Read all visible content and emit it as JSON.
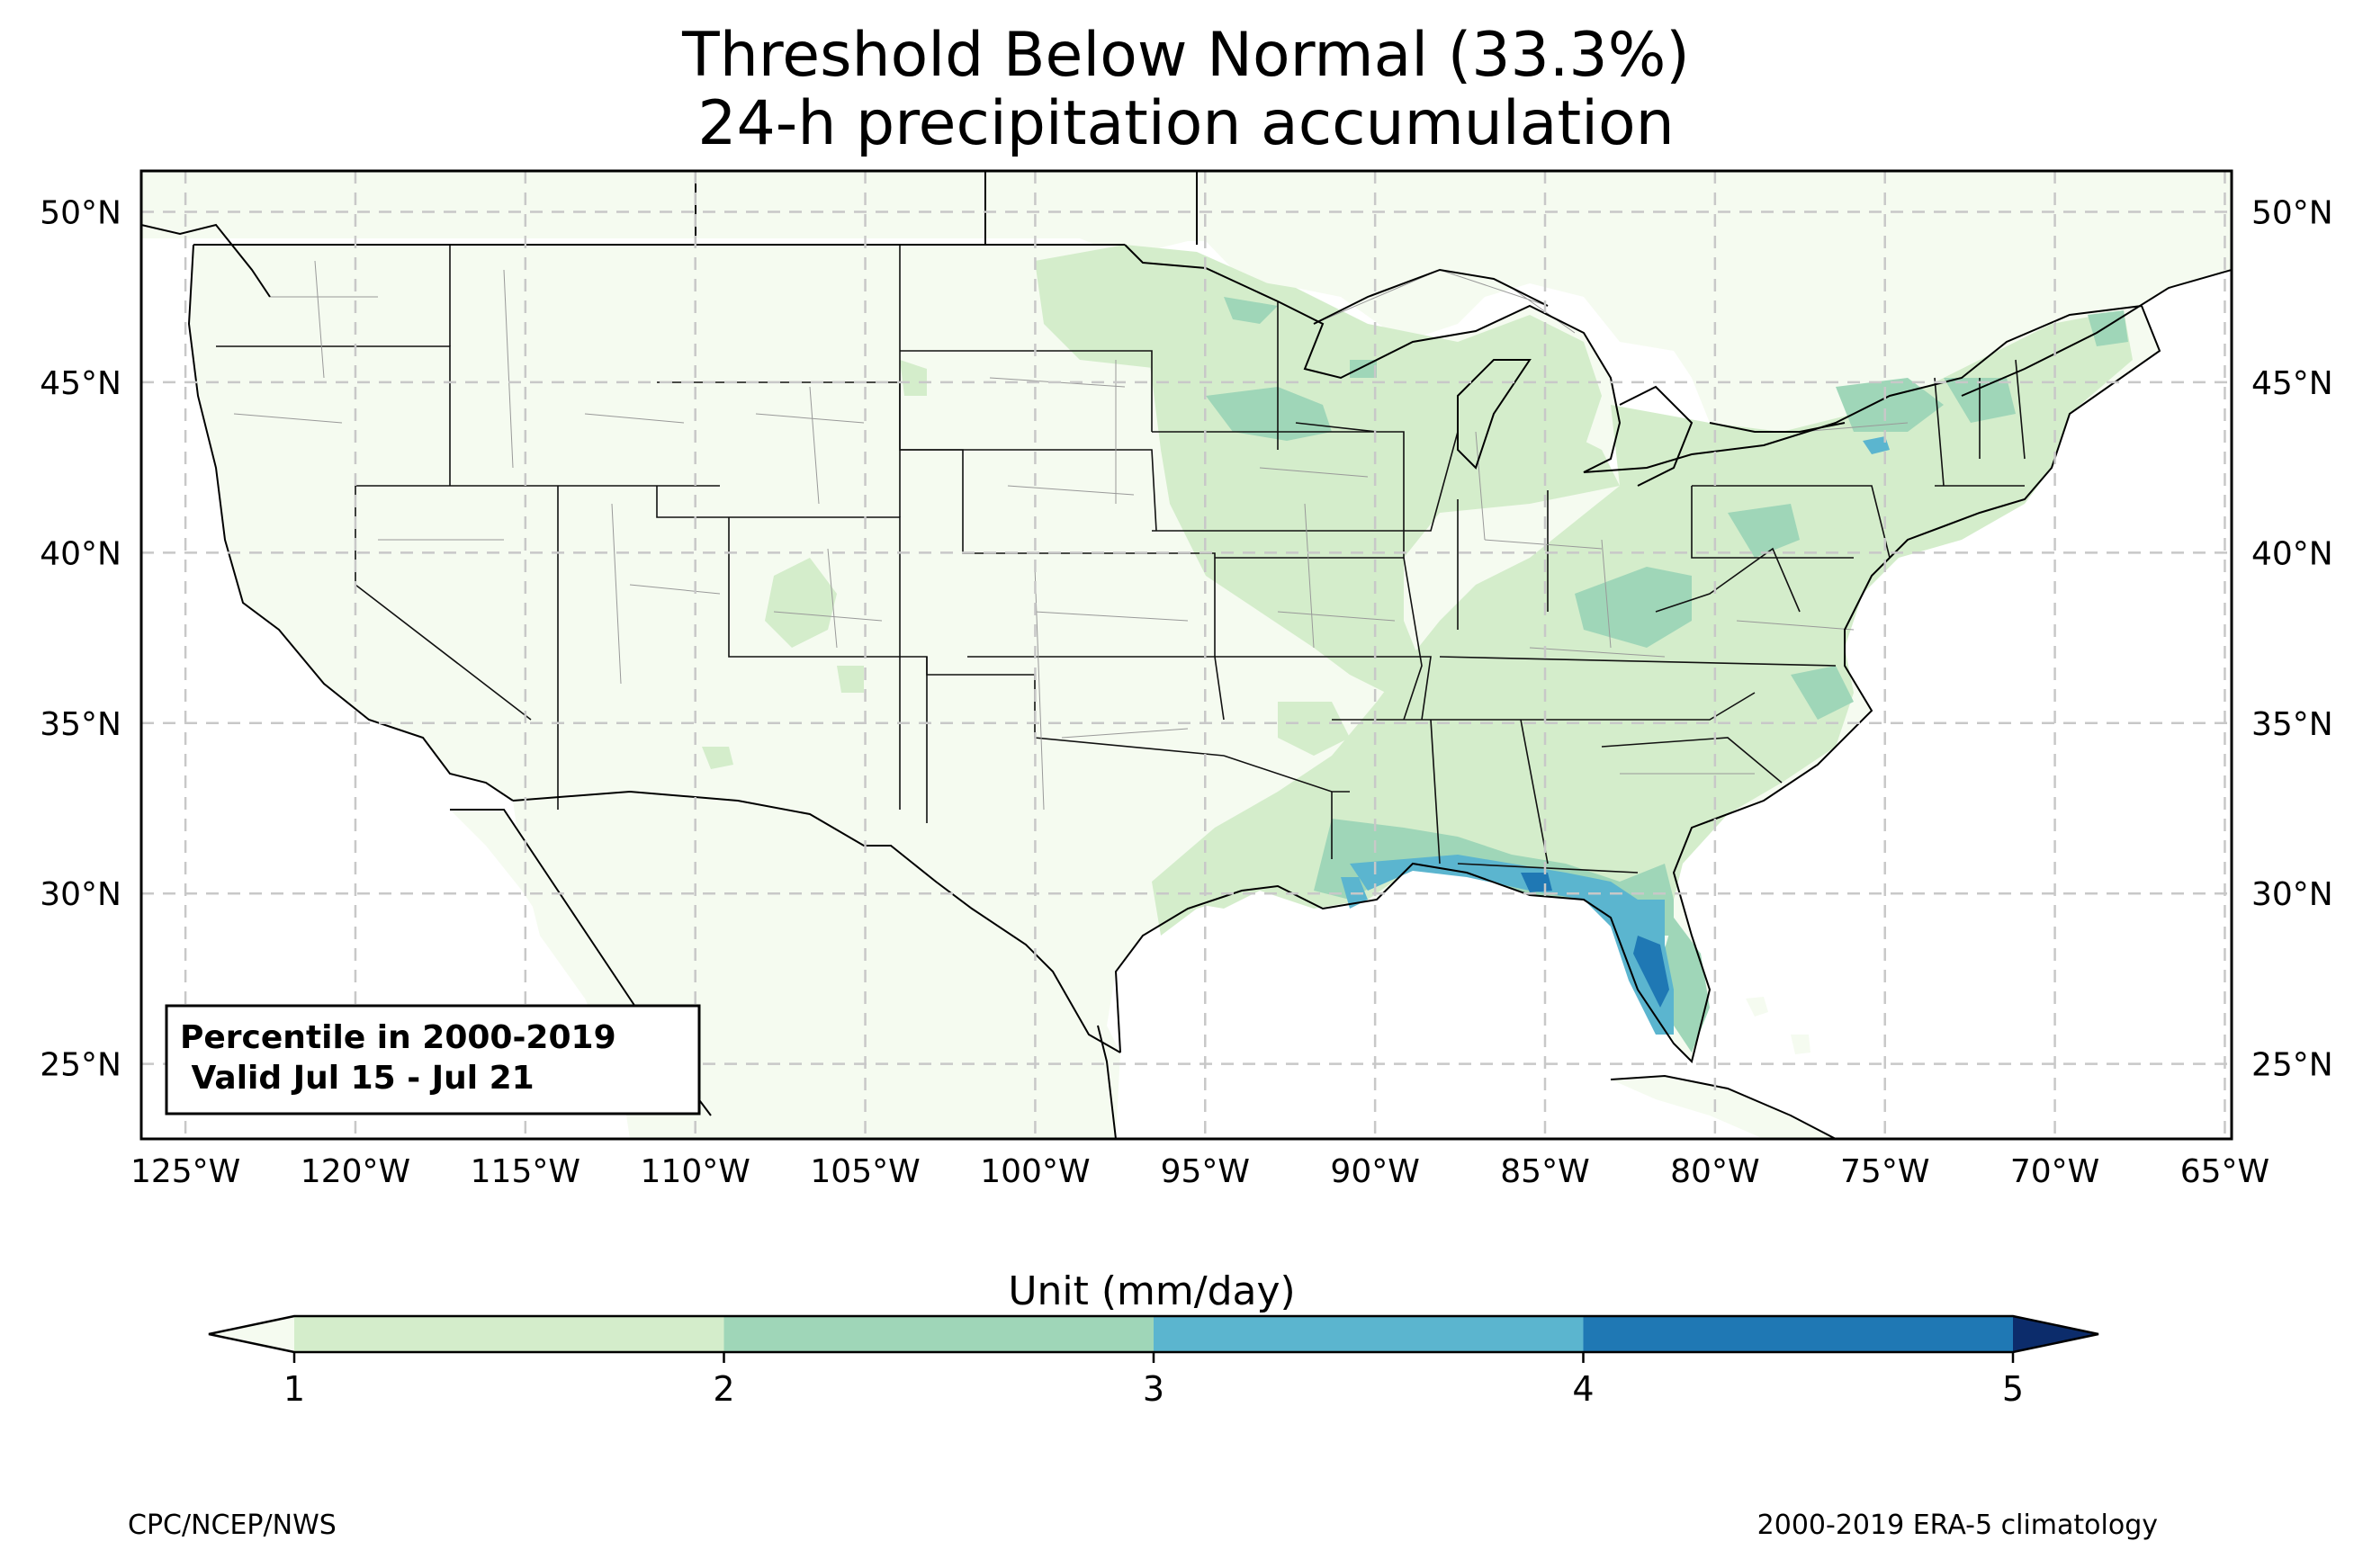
{
  "title": {
    "line1": "Threshold Below Normal (33.3%)",
    "line2": "24-h precipitation accumulation"
  },
  "map": {
    "lon_ticks": [
      "125°W",
      "120°W",
      "115°W",
      "110°W",
      "105°W",
      "100°W",
      "95°W",
      "90°W",
      "85°W",
      "80°W",
      "75°W",
      "70°W",
      "65°W"
    ],
    "lon_values": [
      -125,
      -120,
      -115,
      -110,
      -105,
      -100,
      -95,
      -90,
      -85,
      -80,
      -75,
      -70,
      -65
    ],
    "lat_ticks": [
      "50°N",
      "45°N",
      "40°N",
      "35°N",
      "30°N",
      "25°N"
    ],
    "lat_values": [
      50,
      45,
      40,
      35,
      30,
      25
    ],
    "lon_range": [
      -126.3,
      -64.8
    ],
    "lat_range": [
      22.8,
      51.2
    ],
    "info_box": {
      "line1": "Percentile in 2000-2019",
      "line2": " Valid Jul 15 - Jul 21"
    },
    "land_color": "#f5fbf0",
    "ocean_color": "#ffffff"
  },
  "colorbar": {
    "label": "Unit (mm/day)",
    "ticks": [
      "1",
      "2",
      "3",
      "4",
      "5"
    ],
    "bounds": [
      1,
      2,
      3,
      4,
      5
    ],
    "colors": [
      "#d4edcb",
      "#9fd6b8",
      "#5bb5cf",
      "#1f78b4",
      "#0c2c6b"
    ],
    "under_color": "#f5fbf0",
    "over_color": "#0c2c6b"
  },
  "credits": {
    "left": "CPC/NCEP/NWS",
    "right": "2000-2019 ERA-5 climatology"
  }
}
